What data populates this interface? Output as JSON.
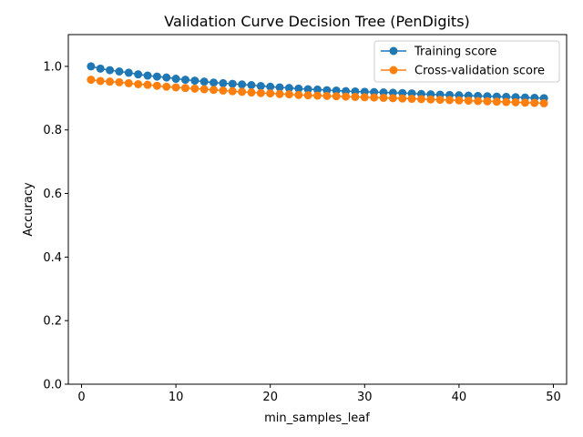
{
  "chart_data": {
    "type": "line",
    "title": "Validation Curve Decision Tree (PenDigits)",
    "xlabel": "min_samples_leaf",
    "ylabel": "Accuracy",
    "xlim": [
      -1.4,
      51.4
    ],
    "ylim": [
      0.0,
      1.1
    ],
    "xticks": [
      0,
      10,
      20,
      30,
      40,
      50
    ],
    "yticks": [
      0.0,
      0.2,
      0.4,
      0.6,
      0.8,
      1.0
    ],
    "xtick_labels": [
      "0",
      "10",
      "20",
      "30",
      "40",
      "50"
    ],
    "ytick_labels": [
      "0.0",
      "0.2",
      "0.4",
      "0.6",
      "0.8",
      "1.0"
    ],
    "grid": false,
    "legend_position": "top-right",
    "x": [
      1,
      2,
      3,
      4,
      5,
      6,
      7,
      8,
      9,
      10,
      11,
      12,
      13,
      14,
      15,
      16,
      17,
      18,
      19,
      20,
      21,
      22,
      23,
      24,
      25,
      26,
      27,
      28,
      29,
      30,
      31,
      32,
      33,
      34,
      35,
      36,
      37,
      38,
      39,
      40,
      41,
      42,
      43,
      44,
      45,
      46,
      47,
      48,
      49
    ],
    "series": [
      {
        "name": "Training score",
        "color": "#1f77b4",
        "marker": "circle",
        "values": [
          1.0,
          0.993,
          0.988,
          0.984,
          0.98,
          0.975,
          0.971,
          0.968,
          0.965,
          0.961,
          0.958,
          0.955,
          0.952,
          0.949,
          0.947,
          0.945,
          0.943,
          0.941,
          0.938,
          0.936,
          0.934,
          0.932,
          0.93,
          0.928,
          0.927,
          0.925,
          0.924,
          0.922,
          0.921,
          0.92,
          0.919,
          0.918,
          0.917,
          0.916,
          0.915,
          0.913,
          0.912,
          0.911,
          0.91,
          0.909,
          0.908,
          0.907,
          0.906,
          0.905,
          0.904,
          0.903,
          0.902,
          0.901,
          0.9
        ]
      },
      {
        "name": "Cross-validation score",
        "color": "#ff7f0e",
        "marker": "circle",
        "values": [
          0.958,
          0.954,
          0.952,
          0.95,
          0.947,
          0.944,
          0.942,
          0.939,
          0.936,
          0.934,
          0.932,
          0.93,
          0.928,
          0.926,
          0.924,
          0.922,
          0.92,
          0.918,
          0.916,
          0.915,
          0.913,
          0.912,
          0.91,
          0.909,
          0.908,
          0.907,
          0.906,
          0.905,
          0.904,
          0.903,
          0.902,
          0.901,
          0.9,
          0.899,
          0.898,
          0.897,
          0.896,
          0.895,
          0.894,
          0.893,
          0.892,
          0.891,
          0.89,
          0.889,
          0.888,
          0.887,
          0.886,
          0.885,
          0.884
        ]
      }
    ]
  }
}
